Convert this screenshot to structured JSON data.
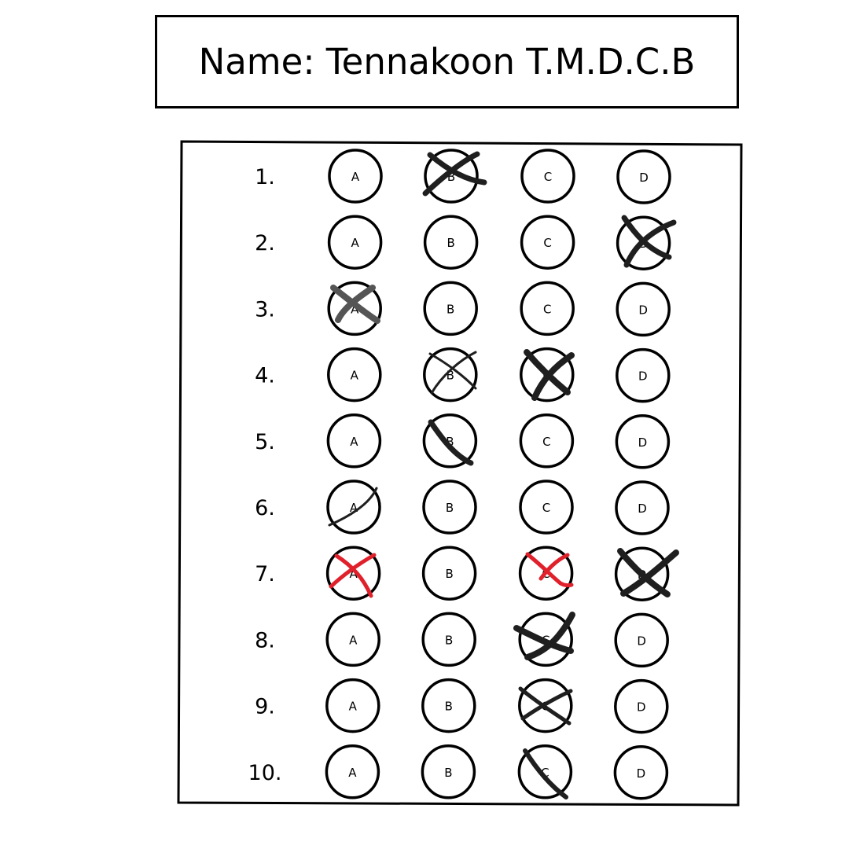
{
  "header": {
    "name_line": "Name: Tennakoon T.M.D.C.B"
  },
  "options": [
    "A",
    "B",
    "C",
    "D"
  ],
  "questions": [
    {
      "number": "1.",
      "marked": [
        "B"
      ]
    },
    {
      "number": "2.",
      "marked": [
        "D"
      ]
    },
    {
      "number": "3.",
      "marked": [
        "A"
      ]
    },
    {
      "number": "4.",
      "marked": [
        "B",
        "C"
      ]
    },
    {
      "number": "5.",
      "marked": [
        "B"
      ]
    },
    {
      "number": "6.",
      "marked": [
        "A"
      ]
    },
    {
      "number": "7.",
      "marked": [
        "A",
        "C",
        "D"
      ]
    },
    {
      "number": "8.",
      "marked": [
        "C"
      ]
    },
    {
      "number": "9.",
      "marked": [
        "C"
      ]
    },
    {
      "number": "10.",
      "marked": [
        "C"
      ]
    }
  ],
  "colors": {
    "ink": "#000000",
    "mark_dark": "#1f1f1f",
    "mark_gray": "#555555",
    "mark_red": "#e0202a"
  }
}
